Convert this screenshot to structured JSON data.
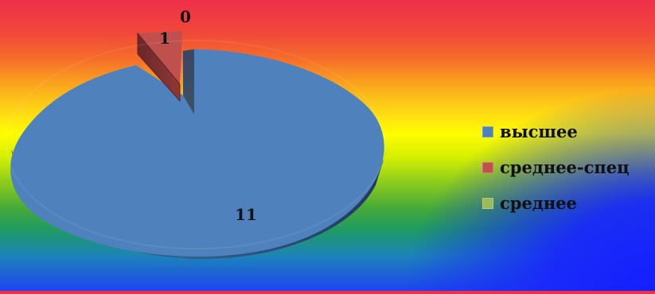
{
  "chart_data": {
    "type": "pie",
    "slices": [
      {
        "label": "высшее",
        "value": 11,
        "color": "#4f81bd"
      },
      {
        "label": "среднее-спец",
        "value": 1,
        "color": "#c0504d"
      },
      {
        "label": "среднее",
        "value": 0,
        "color": "#9bbb59"
      }
    ],
    "legend": {
      "position": "right"
    },
    "data_labels": [
      "11",
      "1",
      "0"
    ],
    "style": "3d-exploded"
  }
}
